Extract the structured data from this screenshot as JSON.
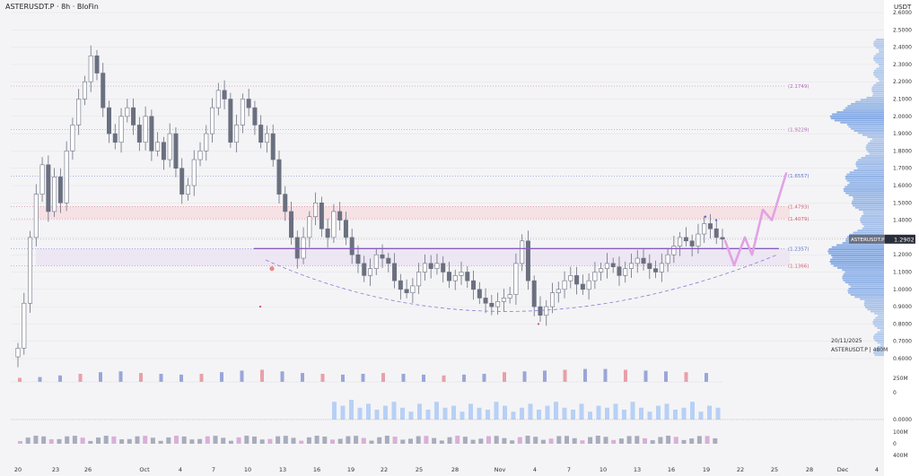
{
  "header": {
    "title": "ASTERUSDT.P · 8h · BloFin",
    "unit": "USDT"
  },
  "watermark": {
    "date": "20/11/2025",
    "symbol": "ASTERUSDT.P  |  480M"
  },
  "price_tag": "1.2902",
  "colors": {
    "background": "#f4f4f6",
    "candle": "#6b7080",
    "support_line": "#8a5cc0",
    "support_zone": "#ece4f3",
    "resistance_zone": "#f6dfe3",
    "volume_profile": "#5b8fde",
    "projection": "#e2a2e4",
    "arc": "#8a7bd8"
  },
  "chart_data": {
    "type": "candlestick",
    "title": "",
    "xlabel": "",
    "ylabel": "",
    "ylim": [
      0.6,
      2.6
    ],
    "x_ticks": [
      "20",
      "23",
      "26",
      "Oct",
      "4",
      "7",
      "10",
      "13",
      "16",
      "19",
      "22",
      "25",
      "28",
      "Nov",
      "4",
      "7",
      "10",
      "13",
      "16",
      "19",
      "22",
      "25",
      "28",
      "Dec",
      "4"
    ],
    "y_ticks": [
      "2.6000",
      "2.5000",
      "2.4000",
      "2.3000",
      "2.2000",
      "2.1000",
      "2.0000",
      "1.9000",
      "1.8000",
      "1.7000",
      "1.6000",
      "1.5000",
      "1.4000",
      "1.3000",
      "1.2000",
      "1.1000",
      "1.0000",
      "0.9000",
      "0.8000",
      "0.7000",
      "0.6000"
    ],
    "levels": [
      {
        "label": "(2.1749)",
        "value": 2.1749,
        "color": "#b06ab3"
      },
      {
        "label": "(1.9229)",
        "value": 1.9229,
        "color": "#b06ab3"
      },
      {
        "label": "(1.6557)",
        "value": 1.6557,
        "color": "#5b6fd0"
      },
      {
        "label": "(1.4793)",
        "value": 1.4793,
        "color": "#d06070"
      },
      {
        "label": "(1.4079)",
        "value": 1.4079,
        "color": "#d06070"
      },
      {
        "label": "(1.2357)",
        "value": 1.2357,
        "color": "#5b6fd0"
      },
      {
        "label": "(1.1366)",
        "value": 1.1366,
        "color": "#d06070"
      }
    ],
    "zones": [
      {
        "name": "resistance",
        "from": 1.4079,
        "to": 1.4793
      },
      {
        "name": "support",
        "from": 1.1366,
        "to": 1.2357
      }
    ],
    "support_line": 1.2357,
    "current_price": 1.2902,
    "closes": [
      0.66,
      0.92,
      1.3,
      1.55,
      1.72,
      1.45,
      1.65,
      1.5,
      1.8,
      1.95,
      2.1,
      2.2,
      2.35,
      2.25,
      2.05,
      1.9,
      1.85,
      2.0,
      2.05,
      1.95,
      1.85,
      2.0,
      1.8,
      1.85,
      1.75,
      1.9,
      1.7,
      1.55,
      1.6,
      1.75,
      1.8,
      1.9,
      2.05,
      2.15,
      2.1,
      1.85,
      1.95,
      2.1,
      2.05,
      1.95,
      1.85,
      1.9,
      1.75,
      1.55,
      1.45,
      1.3,
      1.18,
      1.3,
      1.42,
      1.5,
      1.35,
      1.3,
      1.45,
      1.4,
      1.3,
      1.2,
      1.15,
      1.08,
      1.12,
      1.2,
      1.18,
      1.15,
      1.05,
      1.0,
      0.98,
      1.02,
      1.1,
      1.15,
      1.12,
      1.15,
      1.1,
      1.05,
      1.08,
      1.1,
      1.05,
      1.0,
      0.95,
      0.92,
      0.9,
      0.93,
      0.95,
      0.97,
      1.15,
      1.28,
      1.05,
      0.9,
      0.85,
      0.9,
      0.98,
      1.0,
      1.05,
      1.08,
      1.03,
      1.0,
      1.05,
      1.1,
      1.12,
      1.15,
      1.13,
      1.08,
      1.12,
      1.15,
      1.18,
      1.15,
      1.12,
      1.1,
      1.15,
      1.2,
      1.25,
      1.3,
      1.28,
      1.25,
      1.32,
      1.38,
      1.35,
      1.3,
      1.29
    ],
    "volume_main": [
      0.5,
      0.6,
      0.8,
      1.0,
      1.2,
      1.3,
      1.1,
      1.0,
      0.9,
      1.0,
      1.2,
      1.4,
      1.5,
      1.3,
      1.1,
      1.0,
      0.9,
      1.0,
      1.1,
      1.0,
      0.9,
      0.8,
      0.9,
      1.0,
      1.2,
      1.3,
      1.4,
      1.5,
      1.6,
      1.6,
      1.5,
      1.4,
      1.3,
      1.2,
      1.1
    ],
    "volume_series": [
      0.9,
      0.7,
      1.0,
      0.6,
      0.8,
      0.5,
      0.7,
      0.9,
      0.6,
      0.4,
      0.8,
      0.5,
      0.9,
      0.6,
      0.7,
      0.4,
      0.8,
      0.6,
      0.5,
      0.9,
      0.7,
      0.4,
      0.6,
      0.8,
      0.5,
      0.7,
      0.9,
      0.6,
      0.5,
      0.8,
      0.4,
      0.7,
      0.6,
      0.8,
      0.5,
      0.9,
      0.6,
      0.4,
      0.7,
      0.8,
      0.5,
      0.6,
      0.9,
      0.4,
      0.7,
      0.6
    ],
    "panel_labels": {
      "vol1_top": "250M",
      "vol1_bottom": "0",
      "vol2_top": "0.0000",
      "vol3_top": "100M",
      "vol3_mid": "0",
      "vol3_bottom": "400M"
    }
  }
}
